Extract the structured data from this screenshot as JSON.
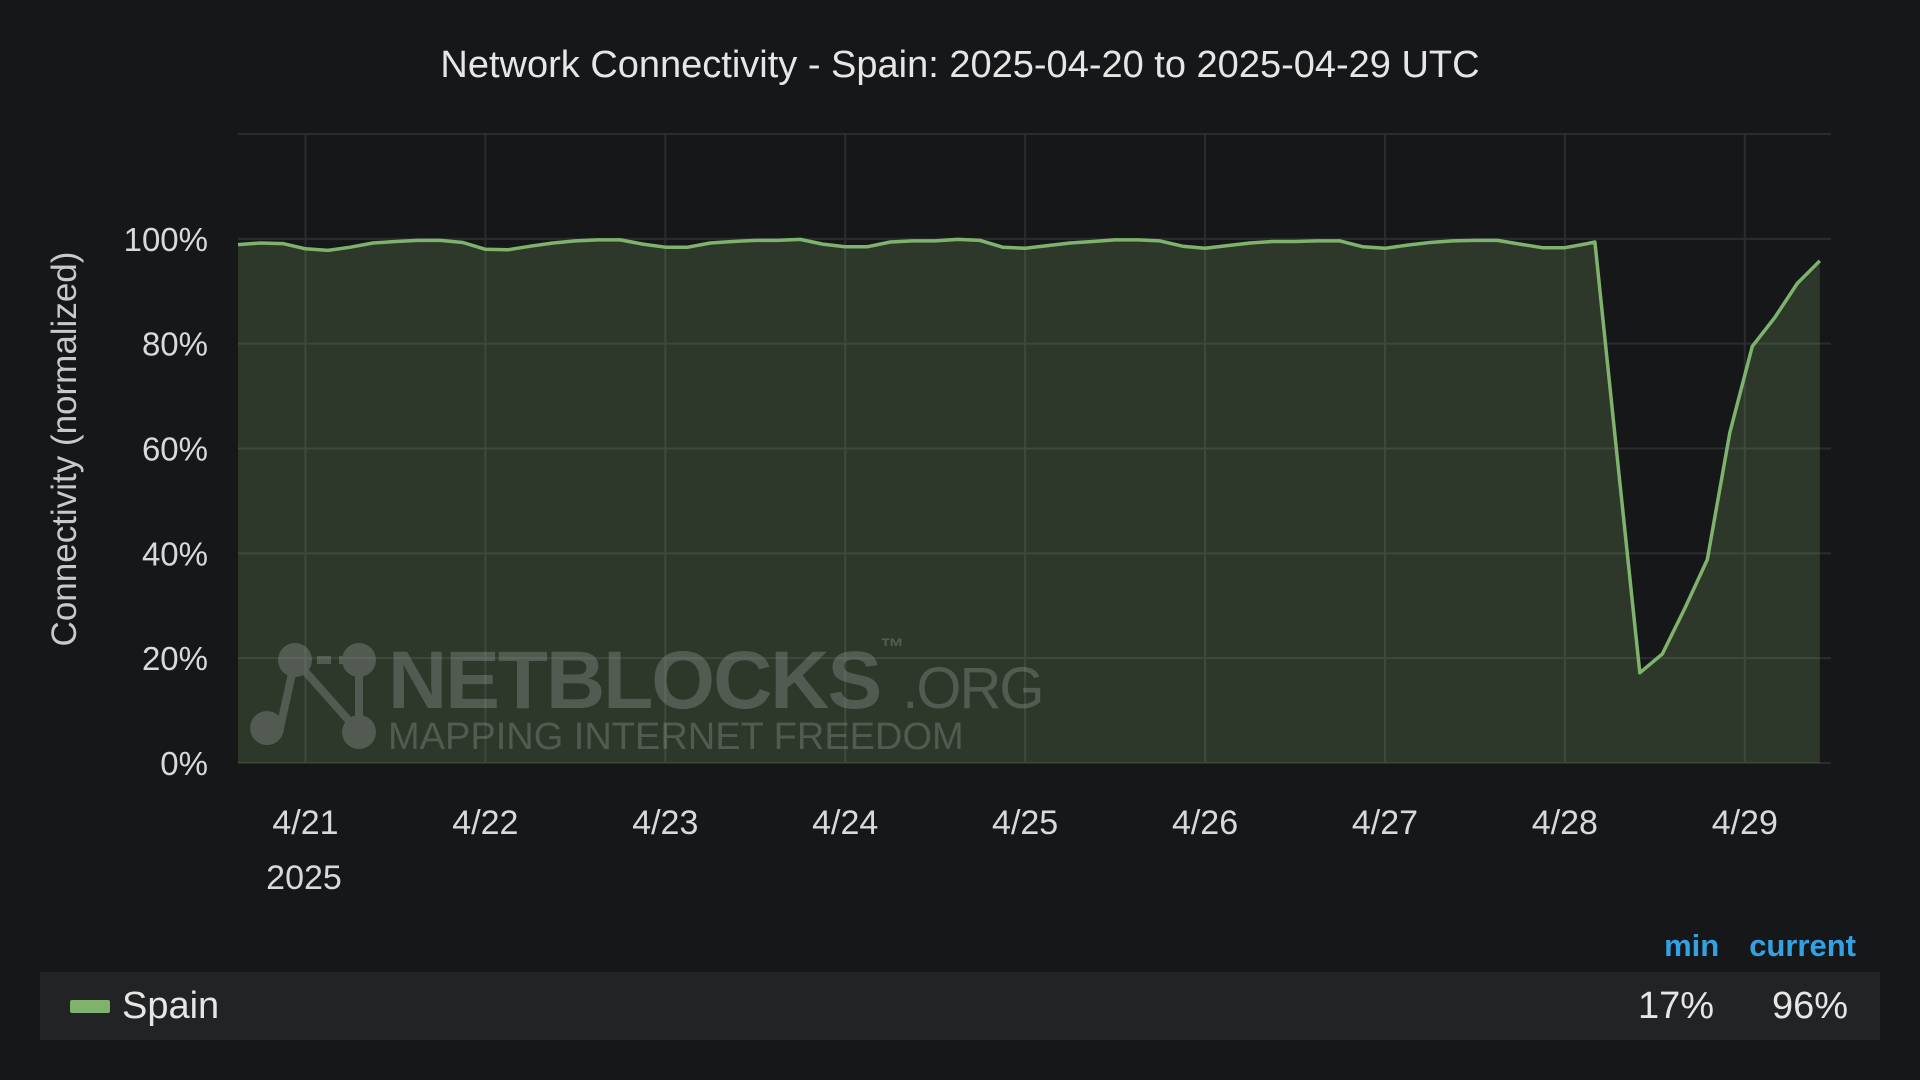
{
  "title": "Network Connectivity - Spain: 2025-04-20 to 2025-04-29 UTC",
  "watermark": {
    "brand": "NETBLOCKS",
    "tm": "™",
    "suffix": ".ORG",
    "tagline": "MAPPING INTERNET FREEDOM"
  },
  "legend": {
    "header_min": "min",
    "header_current": "current",
    "series_name": "Spain",
    "min_value": "17%",
    "current_value": "96%",
    "color": "#7eb26d"
  },
  "chart_data": {
    "type": "area",
    "title": "Network Connectivity - Spain: 2025-04-20 to 2025-04-29 UTC",
    "ylabel": "Connectivity (normalized)",
    "xlabel": "",
    "x_year_label": "2025",
    "y_tick_labels": [
      "0%",
      "20%",
      "40%",
      "60%",
      "80%",
      "100%"
    ],
    "ylim": [
      0,
      120
    ],
    "yticks": [
      0,
      20,
      40,
      60,
      80,
      100
    ],
    "x_tick_labels": [
      "4/21",
      "4/22",
      "4/23",
      "4/24",
      "4/25",
      "4/26",
      "4/27",
      "4/28",
      "4/29"
    ],
    "xlim": [
      "2025-04-20T15:00",
      "2025-04-29T11:30"
    ],
    "grid": true,
    "series": [
      {
        "name": "Spain",
        "color": "#7eb26d",
        "points": [
          [
            "2025-04-20T15:00",
            98.9
          ],
          [
            "2025-04-20T18:00",
            99.2
          ],
          [
            "2025-04-20T21:00",
            99.1
          ],
          [
            "2025-04-21T00:00",
            98.1
          ],
          [
            "2025-04-21T03:00",
            97.8
          ],
          [
            "2025-04-21T06:00",
            98.4
          ],
          [
            "2025-04-21T09:00",
            99.2
          ],
          [
            "2025-04-21T12:00",
            99.5
          ],
          [
            "2025-04-21T15:00",
            99.7
          ],
          [
            "2025-04-21T18:00",
            99.7
          ],
          [
            "2025-04-21T21:00",
            99.3
          ],
          [
            "2025-04-22T00:00",
            98.0
          ],
          [
            "2025-04-22T03:00",
            97.9
          ],
          [
            "2025-04-22T06:00",
            98.6
          ],
          [
            "2025-04-22T09:00",
            99.2
          ],
          [
            "2025-04-22T12:00",
            99.6
          ],
          [
            "2025-04-22T15:00",
            99.8
          ],
          [
            "2025-04-22T18:00",
            99.8
          ],
          [
            "2025-04-22T21:00",
            99.0
          ],
          [
            "2025-04-23T00:00",
            98.4
          ],
          [
            "2025-04-23T03:00",
            98.4
          ],
          [
            "2025-04-23T06:00",
            99.2
          ],
          [
            "2025-04-23T09:00",
            99.5
          ],
          [
            "2025-04-23T12:00",
            99.7
          ],
          [
            "2025-04-23T15:00",
            99.7
          ],
          [
            "2025-04-23T18:00",
            99.9
          ],
          [
            "2025-04-23T21:00",
            99.0
          ],
          [
            "2025-04-24T00:00",
            98.5
          ],
          [
            "2025-04-24T03:00",
            98.5
          ],
          [
            "2025-04-24T06:00",
            99.4
          ],
          [
            "2025-04-24T09:00",
            99.6
          ],
          [
            "2025-04-24T12:00",
            99.6
          ],
          [
            "2025-04-24T15:00",
            99.9
          ],
          [
            "2025-04-24T18:00",
            99.7
          ],
          [
            "2025-04-24T21:00",
            98.4
          ],
          [
            "2025-04-25T00:00",
            98.2
          ],
          [
            "2025-04-25T03:00",
            98.7
          ],
          [
            "2025-04-25T06:00",
            99.2
          ],
          [
            "2025-04-25T09:00",
            99.5
          ],
          [
            "2025-04-25T12:00",
            99.8
          ],
          [
            "2025-04-25T15:00",
            99.8
          ],
          [
            "2025-04-25T18:00",
            99.6
          ],
          [
            "2025-04-25T21:00",
            98.6
          ],
          [
            "2025-04-26T00:00",
            98.2
          ],
          [
            "2025-04-26T03:00",
            98.7
          ],
          [
            "2025-04-26T06:00",
            99.2
          ],
          [
            "2025-04-26T09:00",
            99.5
          ],
          [
            "2025-04-26T12:00",
            99.5
          ],
          [
            "2025-04-26T15:00",
            99.6
          ],
          [
            "2025-04-26T18:00",
            99.6
          ],
          [
            "2025-04-26T21:00",
            98.5
          ],
          [
            "2025-04-27T00:00",
            98.2
          ],
          [
            "2025-04-27T03:00",
            98.8
          ],
          [
            "2025-04-27T06:00",
            99.3
          ],
          [
            "2025-04-27T09:00",
            99.6
          ],
          [
            "2025-04-27T12:00",
            99.7
          ],
          [
            "2025-04-27T15:00",
            99.7
          ],
          [
            "2025-04-27T18:00",
            99.0
          ],
          [
            "2025-04-27T21:00",
            98.3
          ],
          [
            "2025-04-28T00:00",
            98.3
          ],
          [
            "2025-04-28T03:00",
            99.1
          ],
          [
            "2025-04-28T04:00",
            99.4
          ],
          [
            "2025-04-28T07:00",
            58.0
          ],
          [
            "2025-04-28T10:00",
            17.2
          ],
          [
            "2025-04-28T13:00",
            20.8
          ],
          [
            "2025-04-28T16:00",
            29.5
          ],
          [
            "2025-04-28T19:00",
            38.8
          ],
          [
            "2025-04-28T22:00",
            63.0
          ],
          [
            "2025-04-29T01:00",
            79.5
          ],
          [
            "2025-04-29T04:00",
            85.0
          ],
          [
            "2025-04-29T07:00",
            91.5
          ],
          [
            "2025-04-29T10:00",
            95.8
          ]
        ]
      }
    ]
  }
}
